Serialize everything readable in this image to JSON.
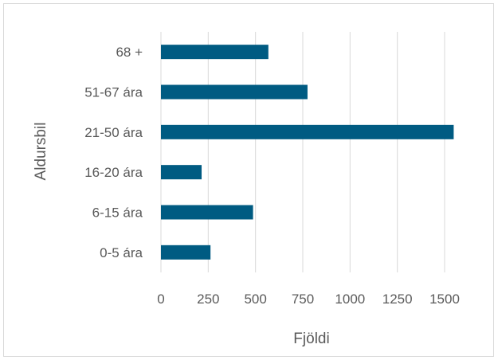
{
  "chart_data": {
    "type": "bar",
    "orientation": "horizontal",
    "categories": [
      "0-5 ára",
      "6-15 ára",
      "16-20 ára",
      "21-50 ára",
      "51-67 ára",
      "68 +"
    ],
    "values": [
      262,
      487,
      215,
      1548,
      775,
      568
    ],
    "xlabel": "Fjöldi",
    "ylabel": "Aldursbil",
    "xlim": [
      0,
      1500
    ],
    "xticks": [
      "0",
      "250",
      "500",
      "750",
      "1000",
      "1250",
      "1500"
    ],
    "grid": "vertical",
    "bar_color": "#005b82",
    "grid_color": "#d9d9d9"
  }
}
